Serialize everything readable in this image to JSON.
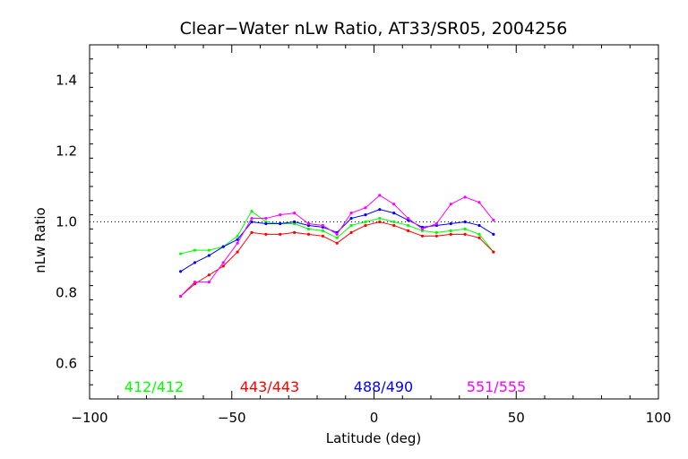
{
  "chart_data": {
    "type": "line",
    "title": "Clear−Water nLw Ratio, AT33/SR05, 2004256",
    "xlabel": "Latitude (deg)",
    "ylabel": "nLw Ratio",
    "xlim": [
      -100,
      100
    ],
    "ylim": [
      0.5,
      1.5
    ],
    "xticks": [
      -100,
      -50,
      0,
      50,
      100
    ],
    "xtick_labels": [
      "−100",
      "−50",
      "0",
      "50",
      "100"
    ],
    "yticks": [
      0.6,
      0.8,
      1.0,
      1.2,
      1.4
    ],
    "ytick_labels": [
      "0.6",
      "0.8",
      "1.0",
      "1.2",
      "1.4"
    ],
    "reference_line": 1.0,
    "grid": false,
    "legend_placement": "bottom",
    "x": [
      -68,
      -63,
      -58,
      -53,
      -48,
      -43,
      -38,
      -33,
      -28,
      -23,
      -18,
      -13,
      -8,
      -3,
      2,
      7,
      12,
      17,
      22,
      27,
      32,
      37,
      42
    ],
    "series": [
      {
        "name": "412/412",
        "color": "#00ff00",
        "values": [
          0.91,
          0.92,
          0.92,
          0.93,
          0.96,
          1.03,
          1.0,
          0.995,
          0.995,
          0.98,
          0.975,
          0.955,
          0.99,
          1.0,
          1.01,
          1.0,
          0.99,
          0.975,
          0.97,
          0.975,
          0.98,
          0.965,
          0.915
        ]
      },
      {
        "name": "443/443",
        "color": "#ff0000",
        "values": [
          0.79,
          0.825,
          0.85,
          0.875,
          0.915,
          0.97,
          0.965,
          0.965,
          0.97,
          0.965,
          0.96,
          0.94,
          0.97,
          0.99,
          1.0,
          0.99,
          0.975,
          0.96,
          0.96,
          0.965,
          0.965,
          0.955,
          0.915
        ]
      },
      {
        "name": "488/490",
        "color": "#0000ff",
        "values": [
          0.86,
          0.885,
          0.905,
          0.93,
          0.95,
          1.0,
          0.995,
          0.995,
          1.0,
          0.99,
          0.985,
          0.97,
          1.01,
          1.02,
          1.035,
          1.025,
          1.005,
          0.985,
          0.99,
          0.995,
          1.0,
          0.99,
          0.965
        ]
      },
      {
        "name": "551/555",
        "color": "#ff00ff",
        "values": [
          0.79,
          0.83,
          0.83,
          0.885,
          0.94,
          1.01,
          1.01,
          1.02,
          1.025,
          0.995,
          0.99,
          0.965,
          1.025,
          1.04,
          1.075,
          1.05,
          1.01,
          0.98,
          0.995,
          1.05,
          1.07,
          1.055,
          1.005
        ]
      }
    ]
  }
}
